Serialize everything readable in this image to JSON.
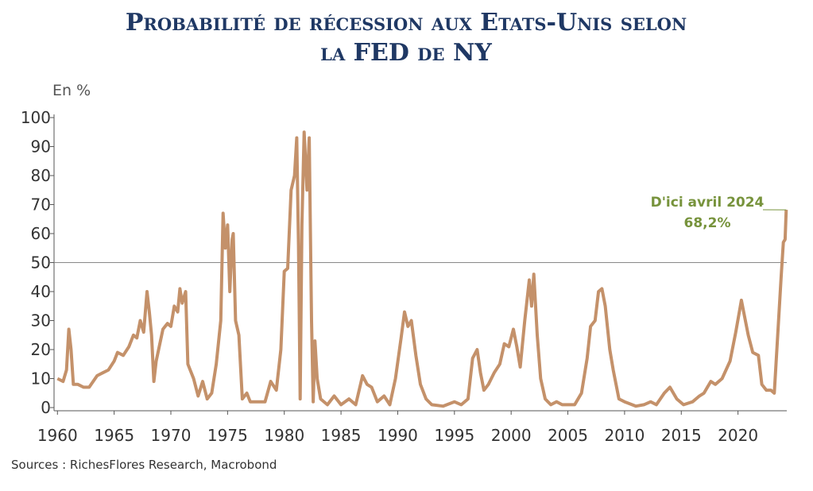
{
  "chart_data": {
    "type": "line",
    "title": [
      "Probabilité de récession aux Etats-Unis selon",
      "la FED de NY"
    ],
    "y_label": "En %",
    "source": "Sources : RichesFlores Research, Macrobond",
    "annotation": [
      "D'ici avril 2024",
      "68,2%"
    ],
    "reference_line": 50,
    "xlim": [
      1959.7,
      2024.3
    ],
    "xticks": [
      1960,
      1965,
      1970,
      1975,
      1980,
      1985,
      1990,
      1995,
      2000,
      2005,
      2010,
      2015,
      2020
    ],
    "ylim": [
      0,
      100
    ],
    "yticks": [
      0,
      10,
      20,
      30,
      40,
      50,
      60,
      70,
      80,
      90,
      100
    ],
    "series": [
      {
        "color": "#c4916a",
        "x": [
          1960.0,
          1960.5,
          1960.8,
          1961.0,
          1961.2,
          1961.4,
          1961.8,
          1962.3,
          1962.8,
          1963.5,
          1964,
          1964.5,
          1965,
          1965.3,
          1965.8,
          1966.3,
          1966.7,
          1967,
          1967.3,
          1967.6,
          1967.9,
          1968.1,
          1968.3,
          1968.5,
          1968.7,
          1969.3,
          1969.7,
          1970,
          1970.3,
          1970.6,
          1970.8,
          1971,
          1971.3,
          1971.5,
          1972,
          1972.4,
          1972.8,
          1973.2,
          1973.6,
          1974,
          1974.4,
          1974.6,
          1974.8,
          1975,
          1975.2,
          1975.4,
          1975.5,
          1975.7,
          1976,
          1976.3,
          1976.7,
          1977,
          1977.8,
          1978.3,
          1978.8,
          1979.3,
          1979.7,
          1980,
          1980.3,
          1980.6,
          1980.9,
          1981.1,
          1981.25,
          1981.4,
          1981.55,
          1981.75,
          1982,
          1982.2,
          1982.4,
          1982.55,
          1982.7,
          1982.9,
          1983.2,
          1983.8,
          1984.4,
          1985,
          1985.7,
          1986.3,
          1986.9,
          1987.3,
          1987.7,
          1988.2,
          1988.8,
          1989.3,
          1989.8,
          1990.3,
          1990.6,
          1990.9,
          1991.2,
          1991.6,
          1992,
          1992.5,
          1993,
          1994,
          1995,
          1995.6,
          1996.2,
          1996.6,
          1997,
          1997.3,
          1997.6,
          1998,
          1998.5,
          1999,
          1999.4,
          1999.8,
          2000.2,
          2000.5,
          2000.8,
          2001.2,
          2001.6,
          2001.8,
          2002,
          2002.3,
          2002.6,
          2003,
          2003.5,
          2004,
          2004.5,
          2005,
          2005.6,
          2006.2,
          2006.7,
          2007,
          2007.4,
          2007.7,
          2008,
          2008.3,
          2008.7,
          2009,
          2009.5,
          2010,
          2011,
          2011.7,
          2012.3,
          2012.8,
          2013.5,
          2014,
          2014.6,
          2015.2,
          2016,
          2016.6,
          2017,
          2017.6,
          2018,
          2018.6,
          2019.3,
          2019.8,
          2020.3,
          2020.6,
          2020.9,
          2021.3,
          2021.8,
          2022.1,
          2022.5,
          2022.9,
          2023.2,
          2023.5,
          2023.8,
          2024,
          2024.15,
          2024.25
        ],
        "values": [
          10,
          9,
          13,
          27,
          20,
          8,
          8,
          7,
          7,
          11,
          12,
          13,
          16,
          19,
          18,
          21,
          25,
          24,
          30,
          26,
          40,
          33,
          25,
          9,
          16,
          27,
          29,
          28,
          35,
          33,
          41,
          36,
          40,
          15,
          10,
          4,
          9,
          3,
          5,
          15,
          30,
          67,
          55,
          63,
          40,
          58,
          60,
          30,
          25,
          3,
          5,
          2,
          2,
          2,
          9,
          6,
          20,
          47,
          48,
          75,
          80,
          93,
          56,
          3,
          63,
          95,
          75,
          93,
          30,
          2,
          23,
          10,
          3,
          1,
          4,
          1,
          3,
          1,
          11,
          8,
          7,
          2,
          4,
          1,
          10,
          24,
          33,
          28,
          30,
          18,
          8,
          3,
          1,
          0.5,
          2,
          1,
          3,
          17,
          20,
          12,
          6,
          8,
          12,
          15,
          22,
          21,
          27,
          21,
          14,
          30,
          44,
          35,
          46,
          25,
          10,
          3,
          1,
          2,
          1,
          1,
          1,
          5,
          17,
          28,
          30,
          40,
          41,
          35,
          20,
          13,
          3,
          2,
          0.5,
          1,
          2,
          1,
          5,
          7,
          3,
          1,
          2,
          4,
          5,
          9,
          8,
          10,
          16,
          26,
          37,
          31,
          25,
          19,
          18,
          8,
          6,
          6,
          5,
          25,
          45,
          57,
          58,
          68.2
        ]
      }
    ]
  }
}
